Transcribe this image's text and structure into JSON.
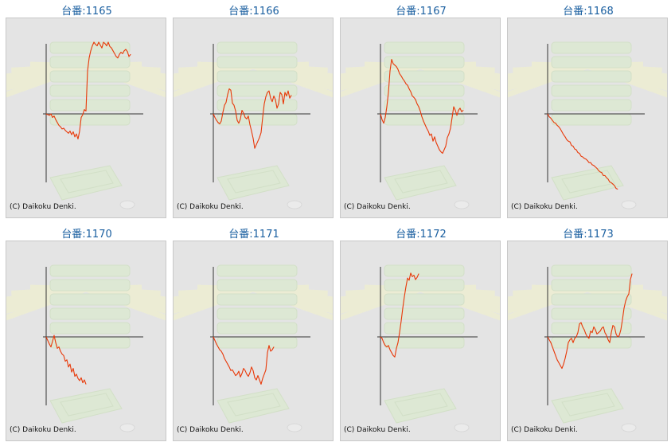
{
  "copyright": "(C) Daikoku Denki.",
  "colors": {
    "line": "#e83808",
    "axis": "#333333",
    "title": "#1a5fa0",
    "background": "#e4e4e4"
  },
  "chart_data": [
    {
      "type": "line",
      "title": "台番:1165",
      "x": [
        0,
        2,
        4,
        6,
        8,
        10,
        12,
        14,
        16,
        18,
        20,
        22,
        24,
        26,
        28,
        30,
        32,
        34,
        36,
        38,
        40,
        42,
        44,
        46,
        48,
        50,
        52,
        54,
        56,
        58,
        60,
        62,
        64,
        66,
        68,
        70,
        72,
        74,
        76,
        78,
        80,
        82,
        84,
        86,
        88,
        90,
        92,
        94,
        96,
        98,
        100,
        102,
        104,
        106
      ],
      "y": [
        0,
        -1,
        -2,
        0,
        -5,
        -3,
        -8,
        -12,
        -16,
        -18,
        -21,
        -20,
        -23,
        -25,
        -27,
        -24,
        -29,
        -25,
        -32,
        -28,
        -35,
        -24,
        -5,
        -1,
        6,
        4,
        60,
        78,
        88,
        95,
        100,
        97,
        95,
        100,
        96,
        92,
        100,
        98,
        95,
        100,
        94,
        92,
        88,
        84,
        80,
        78,
        83,
        86,
        84,
        88,
        90,
        87,
        80,
        83
      ]
    },
    {
      "type": "line",
      "title": "台番:1166",
      "x": [
        0,
        2,
        4,
        6,
        8,
        10,
        12,
        14,
        16,
        18,
        20,
        22,
        24,
        26,
        28,
        30,
        32,
        34,
        36,
        38,
        40,
        42,
        44,
        46,
        48,
        50,
        52,
        54,
        56,
        58,
        60,
        62,
        64,
        66,
        68,
        70,
        72,
        74,
        76,
        78,
        80,
        82,
        84,
        86,
        88,
        90,
        92,
        94,
        96,
        98
      ],
      "y": [
        0,
        -5,
        -9,
        -12,
        -14,
        -10,
        2,
        12,
        16,
        27,
        35,
        33,
        15,
        12,
        4,
        -9,
        -13,
        -7,
        5,
        1,
        -5,
        -7,
        -3,
        -15,
        -24,
        -34,
        -48,
        -43,
        -38,
        -33,
        -26,
        -5,
        14,
        24,
        30,
        32,
        22,
        17,
        25,
        20,
        8,
        14,
        30,
        27,
        14,
        30,
        25,
        32,
        22,
        26
      ]
    },
    {
      "type": "line",
      "title": "台番:1167",
      "x": [
        0,
        2,
        4,
        6,
        8,
        10,
        12,
        14,
        16,
        18,
        20,
        22,
        24,
        26,
        28,
        30,
        32,
        34,
        36,
        38,
        40,
        42,
        44,
        46,
        48,
        50,
        52,
        54,
        56,
        58,
        60,
        62,
        64,
        66,
        68,
        70,
        72,
        74,
        76,
        78,
        80,
        82,
        84,
        86,
        88,
        90,
        92,
        94,
        96,
        98,
        100,
        102,
        104
      ],
      "y": [
        0,
        -8,
        -13,
        -5,
        10,
        30,
        60,
        76,
        70,
        68,
        66,
        62,
        56,
        53,
        49,
        46,
        42,
        40,
        35,
        31,
        25,
        23,
        20,
        14,
        10,
        4,
        -4,
        -10,
        -15,
        -20,
        -24,
        -30,
        -28,
        -38,
        -32,
        -40,
        -45,
        -50,
        -53,
        -55,
        -50,
        -45,
        -33,
        -28,
        -20,
        -5,
        10,
        5,
        -2,
        5,
        8,
        3,
        5
      ]
    },
    {
      "type": "line",
      "title": "台番:1168",
      "x": [
        0,
        2,
        4,
        6,
        8,
        10,
        12,
        14,
        16,
        18,
        20,
        22,
        24,
        26,
        28,
        30,
        32,
        34,
        36,
        38,
        40,
        42,
        44,
        46,
        48,
        50,
        52,
        54,
        56,
        58,
        60,
        62,
        64,
        66,
        68,
        70,
        72,
        74,
        76,
        78,
        80,
        82,
        84,
        86,
        88
      ],
      "y": [
        0,
        -4,
        -6,
        -9,
        -12,
        -13,
        -16,
        -18,
        -21,
        -25,
        -29,
        -32,
        -36,
        -38,
        -39,
        -44,
        -45,
        -49,
        -50,
        -54,
        -55,
        -59,
        -60,
        -62,
        -63,
        -65,
        -68,
        -68,
        -71,
        -72,
        -74,
        -76,
        -79,
        -81,
        -82,
        -86,
        -86,
        -89,
        -91,
        -95,
        -96,
        -98,
        -100,
        -104,
        -105
      ]
    },
    {
      "type": "line",
      "title": "台番:1170",
      "x": [
        0,
        2,
        4,
        6,
        8,
        10,
        12,
        14,
        16,
        18,
        20,
        22,
        24,
        26,
        28,
        30,
        32,
        34,
        36,
        38,
        40,
        42,
        44,
        46,
        48,
        50
      ],
      "y": [
        0,
        -5,
        -10,
        -14,
        -6,
        2,
        -8,
        -16,
        -14,
        -20,
        -24,
        -26,
        -34,
        -32,
        -42,
        -38,
        -49,
        -44,
        -55,
        -52,
        -58,
        -61,
        -57,
        -64,
        -60,
        -66
      ]
    },
    {
      "type": "line",
      "title": "台番:1171",
      "x": [
        0,
        2,
        4,
        6,
        8,
        10,
        12,
        14,
        16,
        18,
        20,
        22,
        24,
        26,
        28,
        30,
        32,
        34,
        36,
        38,
        40,
        42,
        44,
        46,
        48,
        50,
        52,
        54,
        56,
        58,
        60,
        62,
        64,
        66,
        68,
        70,
        72,
        74,
        76
      ],
      "y": [
        0,
        -5,
        -10,
        -14,
        -18,
        -20,
        -24,
        -30,
        -34,
        -38,
        -42,
        -47,
        -46,
        -50,
        -54,
        -52,
        -48,
        -56,
        -51,
        -44,
        -47,
        -52,
        -55,
        -50,
        -42,
        -47,
        -57,
        -60,
        -54,
        -60,
        -66,
        -58,
        -52,
        -46,
        -22,
        -12,
        -20,
        -18,
        -14
      ]
    },
    {
      "type": "line",
      "title": "台番:1172",
      "x": [
        0,
        2,
        4,
        6,
        8,
        10,
        12,
        14,
        16,
        18,
        20,
        22,
        24,
        26,
        28,
        30,
        32,
        34,
        36,
        38,
        40,
        42,
        44,
        46,
        48
      ],
      "y": [
        0,
        -2,
        -8,
        -12,
        -14,
        -12,
        -18,
        -22,
        -26,
        -28,
        -16,
        -8,
        6,
        22,
        40,
        56,
        70,
        82,
        79,
        89,
        84,
        86,
        80,
        83,
        88
      ]
    },
    {
      "type": "line",
      "title": "台番:1173",
      "x": [
        0,
        2,
        4,
        6,
        8,
        10,
        12,
        14,
        16,
        18,
        20,
        22,
        24,
        26,
        28,
        30,
        32,
        34,
        36,
        38,
        40,
        42,
        44,
        46,
        48,
        50,
        52,
        54,
        56,
        58,
        60,
        62,
        64,
        66,
        68,
        70,
        72,
        74,
        76,
        78,
        80,
        82,
        84,
        86,
        88,
        90,
        92,
        94,
        96,
        98,
        100,
        102,
        104,
        106
      ],
      "y": [
        0,
        -4,
        -8,
        -14,
        -20,
        -26,
        -32,
        -36,
        -40,
        -44,
        -38,
        -30,
        -20,
        -8,
        -4,
        -2,
        -8,
        -2,
        0,
        6,
        18,
        20,
        14,
        10,
        4,
        0,
        -2,
        8,
        6,
        14,
        10,
        4,
        6,
        8,
        12,
        14,
        6,
        2,
        -4,
        -8,
        6,
        16,
        14,
        4,
        0,
        2,
        10,
        24,
        40,
        50,
        56,
        60,
        80,
        88
      ]
    }
  ]
}
